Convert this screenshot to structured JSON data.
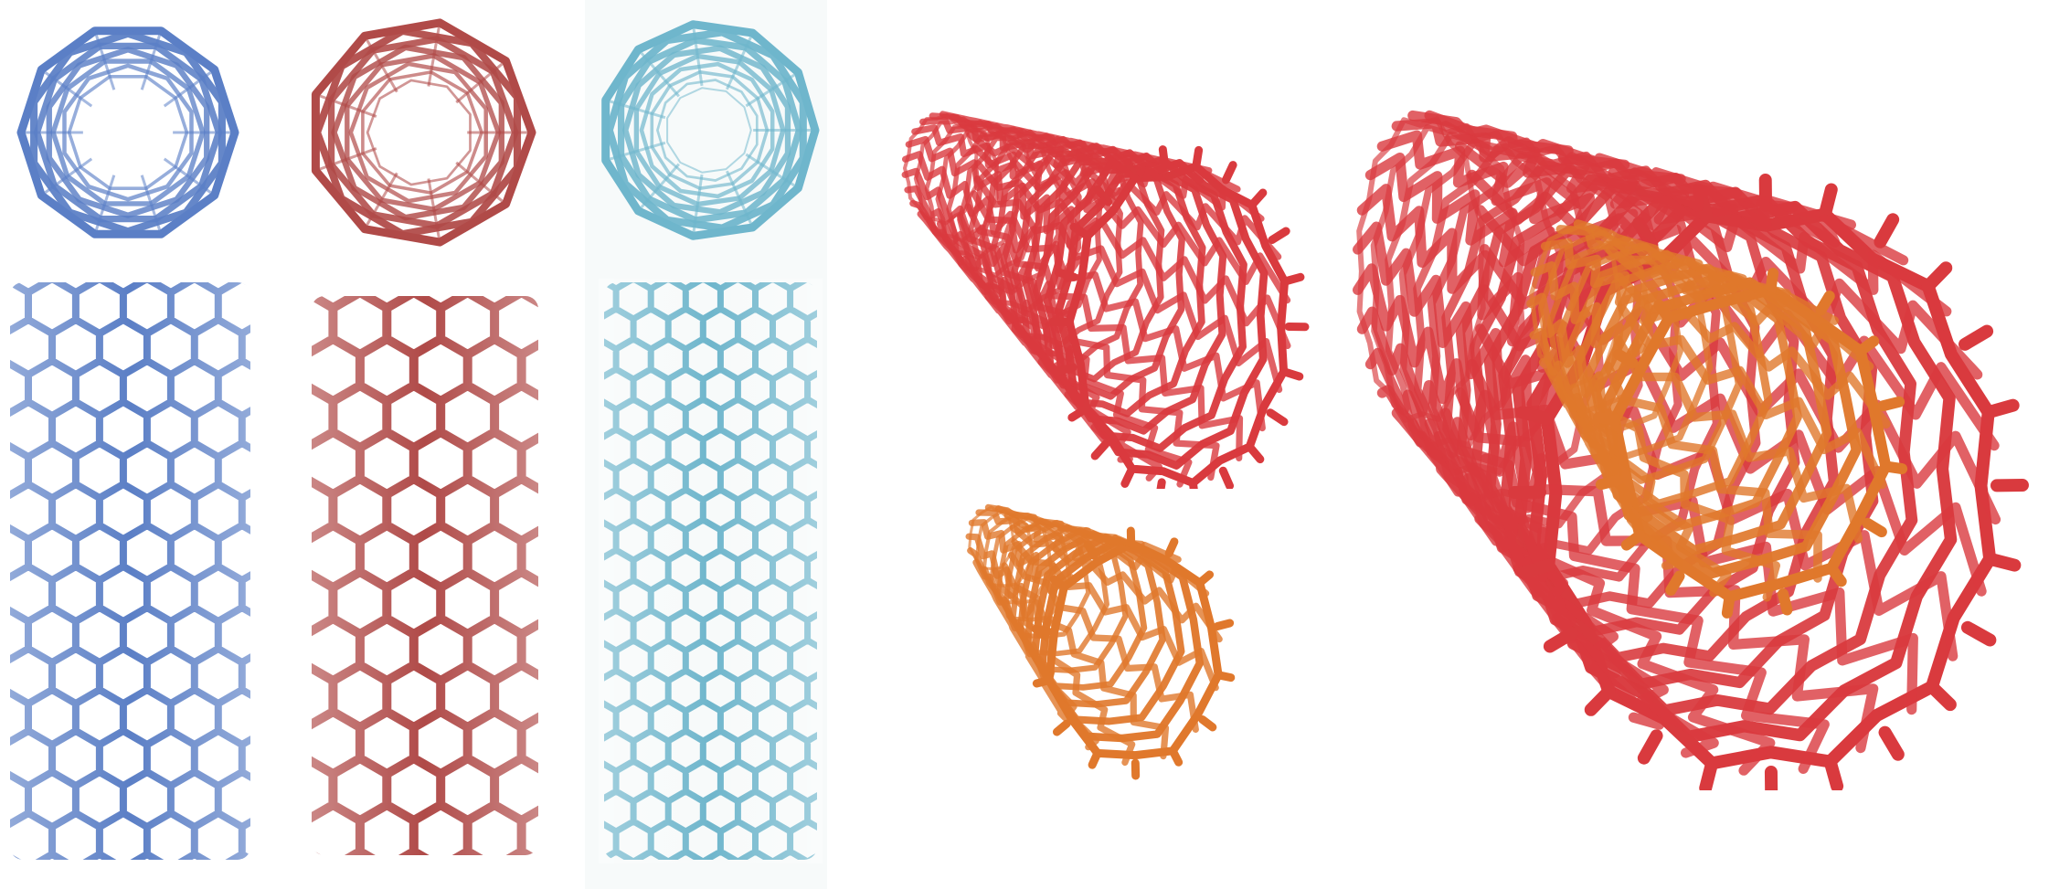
{
  "figure": {
    "colors": {
      "armchair_blue": "#5b7fc6",
      "zigzag_red": "#b04a48",
      "chiral_cyan": "#6fb6cc",
      "nanotube_red": "#d93a3e",
      "nanotube_orange": "#e0782c",
      "background": "#ffffff"
    },
    "panels": [
      {
        "name": "armchair-nanotube-end-view",
        "color": "armchair_blue"
      },
      {
        "name": "zigzag-nanotube-end-view",
        "color": "zigzag_red"
      },
      {
        "name": "chiral-nanotube-end-view",
        "color": "chiral_cyan"
      },
      {
        "name": "armchair-nanotube-side-view",
        "color": "armchair_blue"
      },
      {
        "name": "zigzag-nanotube-side-view",
        "color": "zigzag_red"
      },
      {
        "name": "chiral-nanotube-side-view",
        "color": "chiral_cyan"
      },
      {
        "name": "single-wall-nanotube-perspective",
        "color": "nanotube_red"
      },
      {
        "name": "small-nanotube-perspective",
        "color": "nanotube_orange"
      },
      {
        "name": "multi-wall-nanotube-perspective",
        "color": "nanotube_red"
      }
    ]
  }
}
